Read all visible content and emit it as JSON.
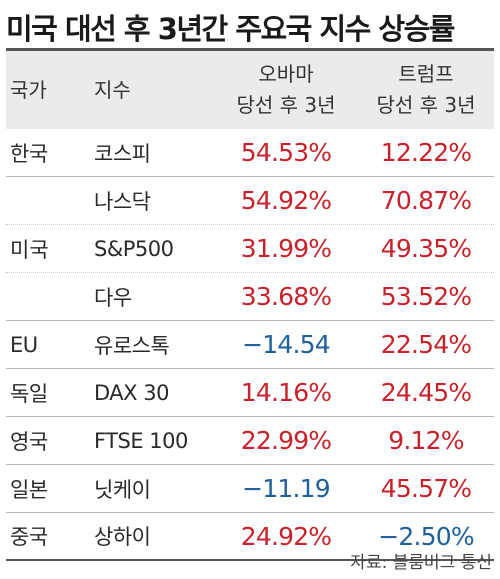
{
  "title": "미국 대선 후 3년간 주요국 지수 상승률",
  "header": {
    "country": "국가",
    "index": "지수",
    "obama_line1": "오바마",
    "obama_line2": "당선 후 3년",
    "trump_line1": "트럼프",
    "trump_line2": "당선 후 3년"
  },
  "rows": [
    {
      "country": "한국",
      "index": "코스피",
      "obama": "54.53%",
      "trump": "12.22%"
    },
    {
      "country": "미국",
      "index": "나스닥",
      "obama": "54.92%",
      "trump": "70.87%"
    },
    {
      "country": "",
      "index": "S&P500",
      "obama": "31.99%",
      "trump": "49.35%"
    },
    {
      "country": "",
      "index": "다우",
      "obama": "33.68%",
      "trump": "53.52%"
    },
    {
      "country": "EU",
      "index": "유로스톡",
      "obama": "−14.54",
      "trump": "22.54%"
    },
    {
      "country": "독일",
      "index": "DAX 30",
      "obama": "14.16%",
      "trump": "24.45%"
    },
    {
      "country": "영국",
      "index": "FTSE 100",
      "obama": "22.99%",
      "trump": "9.12%"
    },
    {
      "country": "일본",
      "index": "닛케이",
      "obama": "−11.19",
      "trump": "45.57%"
    },
    {
      "country": "중국",
      "index": "상하이",
      "obama": "24.92%",
      "trump": "−2.50%"
    }
  ],
  "colors": {
    "positive": "#c8232c",
    "negative": "#1f5f9c",
    "header_bg": "#ebebeb"
  },
  "source": "자료: 블룸버그 통신"
}
